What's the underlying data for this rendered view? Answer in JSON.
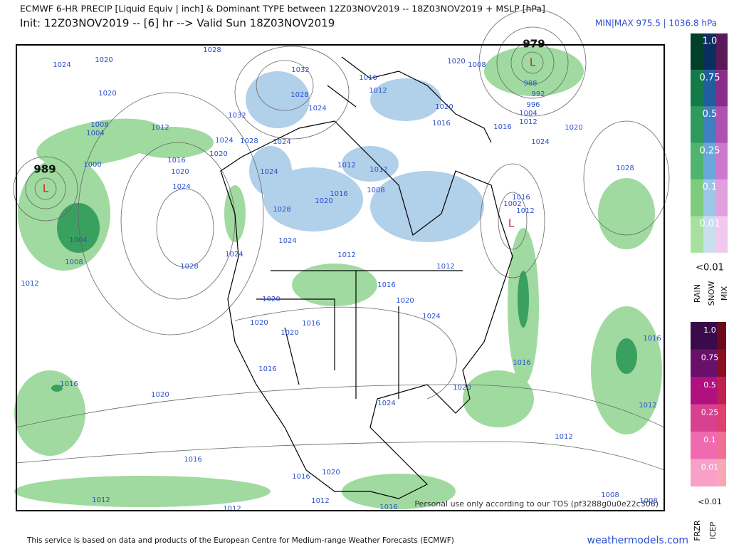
{
  "header": {
    "title": "ECMWF 6-HR PRECIP [Liquid Equiv | inch] & Dominant TYPE between 12Z03NOV2019 -- 18Z03NOV2019 + MSLP [hPa]",
    "subtitle": "Init: 12Z03NOV2019 -- [6] hr --> Valid Sun 18Z03NOV2019",
    "minmax": "MIN|MAX 975.5 | 1036.8 hPa"
  },
  "map": {
    "lows": [
      {
        "symbol": "L",
        "label": "989"
      },
      {
        "symbol": "L",
        "label": "979"
      },
      {
        "symbol": "L"
      }
    ],
    "isobar_labels": [
      1024,
      1020,
      1028,
      1020,
      1032,
      1028,
      1016,
      1012,
      1020,
      1008,
      1032,
      1024,
      1020,
      1016,
      988,
      992,
      996,
      1004,
      1012,
      1016,
      1020,
      1024,
      1008,
      1004,
      1012,
      1024,
      1028,
      1024,
      1020,
      1016,
      1000,
      1020,
      1024,
      1024,
      1012,
      1012,
      1028,
      1020,
      1016,
      1008,
      1016,
      1012,
      1028,
      1024,
      1004,
      1008,
      1024,
      1012,
      1012,
      1028,
      1012,
      1016,
      1020,
      1020,
      1024,
      1020,
      1016,
      1020,
      1016,
      1016,
      1016,
      1016,
      1020,
      1020,
      1024,
      1012,
      1012,
      1016,
      1016,
      1020,
      1012,
      1012,
      1016,
      1012,
      1008,
      1008,
      1002
    ],
    "watermark": "Personal use only according to our TOS (pf3288g0u0e22c306)"
  },
  "legend": {
    "precip": {
      "levels": [
        "1.0",
        "0.75",
        "0.5",
        "0.25",
        "0.1",
        "0.01"
      ],
      "below": "<0.01",
      "types": [
        "RAIN",
        "SNOW",
        "MIX"
      ]
    },
    "ice": {
      "levels": [
        "1.0",
        "0.75",
        "0.5",
        "0.25",
        "0.1",
        "0.01"
      ],
      "below": "<0.01",
      "types": [
        "FRZR",
        "ICEP"
      ]
    }
  },
  "footer": {
    "credit": "This service is based on data and products of the European Centre for Medium-range Weather Forecasts (ECMWF)",
    "site": "weathermodels.com"
  }
}
